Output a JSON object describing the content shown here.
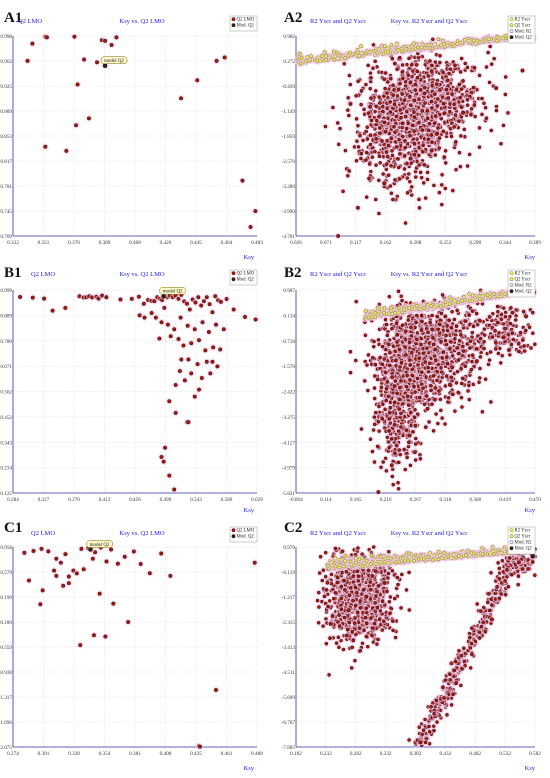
{
  "colors": {
    "grid": "#d8d8d8",
    "axis": "#3333aa",
    "title": "#1a1adb",
    "point_fill": "#aa1a0c",
    "point_stroke": "#2a0505",
    "model_fill": "#3a2205",
    "ycrand_fill": "#f0f060",
    "ycrand_stroke": "#6e6e10",
    "halo": "#f3c7e6",
    "label_bg": "#fff8c8",
    "legend_bg": "#ffffff"
  },
  "chart_data": [
    {
      "id": "A1",
      "panel_label": "A1",
      "type": "scatter",
      "title": "Ksy vs. Q2 LMO",
      "ylabel": "Q2 LMO",
      "xlabel": "Ksy",
      "xlim": [
        0.332,
        0.483
      ],
      "ylim": [
        0.709,
        0.998
      ],
      "xticks": [
        "0.332",
        "0.351",
        "0.370",
        "0.389",
        "0.408",
        "0.426",
        "0.445",
        "0.464",
        "0.483"
      ],
      "yticks": [
        "0.998",
        "0.962",
        "0.925",
        "0.889",
        "0.853",
        "0.817",
        "0.781",
        "0.745",
        "0.709"
      ],
      "legend": [
        "Q2 LMO",
        "Mod. Q2"
      ],
      "model_label": "model Q2",
      "model_point": {
        "x": 0.389,
        "y": 0.955
      },
      "n_clouds": 0,
      "series": [
        {
          "name": "Q2 LMO",
          "x": [
            0.344,
            0.352,
            0.353,
            0.37,
            0.372,
            0.376,
            0.387,
            0.389,
            0.393,
            0.396,
            0.384,
            0.379,
            0.436,
            0.446,
            0.458,
            0.463,
            0.474,
            0.479,
            0.482,
            0.341,
            0.352,
            0.371,
            0.365
          ],
          "y": [
            0.987,
            0.997,
            0.996,
            0.997,
            0.928,
            0.964,
            0.992,
            0.991,
            0.985,
            0.996,
            0.96,
            0.879,
            0.908,
            0.934,
            0.962,
            0.967,
            0.789,
            0.722,
            0.745,
            0.962,
            0.838,
            0.869,
            0.832
          ]
        }
      ]
    },
    {
      "id": "A2",
      "panel_label": "A2",
      "type": "scatter",
      "title": "Ksy vs. R2 Yscr and Q2 Yscr",
      "ylabel": "R2 Yscr and Q2 Yscr",
      "xlabel": "Ksy",
      "xlim": [
        0.026,
        0.389
      ],
      "ylim": [
        -4.701,
        0.982
      ],
      "xticks": [
        "0.026",
        "0.071",
        "0.117",
        "0.162",
        "0.208",
        "0.253",
        "0.298",
        "0.344",
        "0.389"
      ],
      "yticks": [
        "0.982",
        "0.272",
        "-0.439",
        "-1.149",
        "-1.859",
        "-2.570",
        "-3.280",
        "-3.990",
        "-4.701"
      ],
      "legend": [
        "R2 Yscr",
        "Q2 Yscr",
        "Mod. R2",
        "Mod. Q2"
      ],
      "model_label": "model Q2",
      "model_point": {
        "x": 0.386,
        "y": 0.88
      },
      "model_r2": {
        "x": 0.386,
        "y": 0.97
      },
      "n_clouds": 1400,
      "ycrand_band": {
        "x0": 0.026,
        "x1": 0.386,
        "y0": 0.18,
        "y1": 0.96,
        "spread": 0.12,
        "n": 420
      },
      "q2_cloud": [
        {
          "cx": 0.2,
          "cy": -1.15,
          "sx": 0.038,
          "sy": 0.75,
          "n": 900
        },
        {
          "cx": 0.25,
          "cy": -0.75,
          "sx": 0.035,
          "sy": 0.55,
          "n": 300
        },
        {
          "cx": 0.175,
          "cy": -2.3,
          "sx": 0.04,
          "sy": 0.85,
          "n": 200
        }
      ],
      "series": [
        {
          "name": "R2 Yscr",
          "x": [
            0.03,
            0.06,
            0.1,
            0.15,
            0.2,
            0.25,
            0.3,
            0.35,
            0.386
          ],
          "y": [
            0.21,
            0.28,
            0.35,
            0.45,
            0.55,
            0.66,
            0.75,
            0.86,
            0.96
          ]
        },
        {
          "name": "Q2 Yscr",
          "x": [
            0.09,
            0.12,
            0.16,
            0.2,
            0.24,
            0.28,
            0.33,
            0.37
          ],
          "y": [
            -4.7,
            -3.9,
            -3.2,
            -2.5,
            -1.8,
            -1.2,
            -0.5,
            0.0
          ]
        }
      ]
    },
    {
      "id": "B1",
      "panel_label": "B1",
      "type": "scatter",
      "title": "Ksy vs. Q2 LMO",
      "ylabel": "Q2 LMO",
      "xlabel": "Ksy",
      "xlim": [
        0.284,
        0.629
      ],
      "ylim": [
        0.125,
        0.999
      ],
      "xticks": [
        "0.284",
        "0.327",
        "0.370",
        "0.413",
        "0.456",
        "0.499",
        "0.543",
        "0.586",
        "0.629"
      ],
      "yticks": [
        "0.999",
        "0.889",
        "0.780",
        "0.671",
        "0.562",
        "0.452",
        "0.343",
        "0.234",
        "0.125"
      ],
      "legend": [
        "Q2 LMO",
        "Mod. Q2"
      ],
      "model_label": "model Q2",
      "model_point": {
        "x": 0.497,
        "y": 0.972
      },
      "n_clouds": 0,
      "series": [
        {
          "name": "Q2 LMO",
          "x": [
            0.294,
            0.312,
            0.328,
            0.34,
            0.358,
            0.378,
            0.384,
            0.388,
            0.392,
            0.396,
            0.402,
            0.405,
            0.41,
            0.416,
            0.436,
            0.452,
            0.462,
            0.469,
            0.475,
            0.48,
            0.484,
            0.488,
            0.492,
            0.495,
            0.498,
            0.502,
            0.506,
            0.51,
            0.514,
            0.518,
            0.522,
            0.526,
            0.53,
            0.534,
            0.538,
            0.542,
            0.546,
            0.55,
            0.554,
            0.558,
            0.562,
            0.566,
            0.57,
            0.574,
            0.578,
            0.586,
            0.596,
            0.612,
            0.627,
            0.486,
            0.494,
            0.503,
            0.512,
            0.521,
            0.531,
            0.541,
            0.552,
            0.561,
            0.571,
            0.582,
            0.491,
            0.507,
            0.518,
            0.525,
            0.536,
            0.547,
            0.556,
            0.567,
            0.577,
            0.532,
            0.545,
            0.558,
            0.563,
            0.573,
            0.52,
            0.527,
            0.514,
            0.505,
            0.514,
            0.494,
            0.53,
            0.547,
            0.541,
            0.532,
            0.499,
            0.497,
            0.505,
            0.512,
            0.522,
            0.536,
            0.551,
            0.566,
            0.48,
            0.47,
            0.463
          ],
          "y": [
            0.969,
            0.966,
            0.962,
            0.91,
            0.922,
            0.972,
            0.967,
            0.968,
            0.972,
            0.967,
            0.97,
            0.962,
            0.975,
            0.968,
            0.958,
            0.961,
            0.97,
            0.94,
            0.956,
            0.952,
            0.951,
            0.968,
            0.961,
            0.956,
            0.922,
            0.968,
            0.975,
            0.968,
            0.975,
            0.961,
            0.978,
            0.95,
            0.94,
            0.915,
            0.958,
            0.945,
            0.968,
            0.932,
            0.951,
            0.968,
            0.938,
            0.903,
            0.972,
            0.955,
            0.948,
            0.96,
            0.915,
            0.883,
            0.872,
            0.88,
            0.86,
            0.85,
            0.83,
            0.88,
            0.845,
            0.83,
            0.86,
            0.818,
            0.85,
            0.83,
            0.79,
            0.8,
            0.788,
            0.76,
            0.77,
            0.783,
            0.739,
            0.752,
            0.743,
            0.7,
            0.68,
            0.69,
            0.64,
            0.67,
            0.65,
            0.61,
            0.59,
            0.52,
            0.47,
            0.28,
            0.43,
            0.57,
            0.54,
            0.43,
            0.32,
            0.26,
            0.2,
            0.14,
            0.7,
            0.64,
            0.62,
            0.69,
            0.9,
            0.88,
            0.89
          ]
        }
      ]
    },
    {
      "id": "B2",
      "panel_label": "B2",
      "type": "scatter",
      "title": "Ksy vs. R2 Yscr and Q2 Yscr",
      "ylabel": "R2 Yscr and Q2 Yscr",
      "xlabel": "Ksy",
      "xlim": [
        -0.064,
        0.47
      ],
      "ylim": [
        -5.831,
        0.987
      ],
      "xticks": [
        "-0.064",
        "0.114",
        "0.165",
        "0.216",
        "0.267",
        "0.318",
        "0.368",
        "0.419",
        "0.470"
      ],
      "yticks": [
        "0.987",
        "0.134",
        "-0.718",
        "-1.570",
        "-2.422",
        "-3.275",
        "-4.127",
        "-4.979",
        "-5.831"
      ],
      "legend": [
        "R2 Yscr",
        "Q2 Yscr",
        "Mod. R2",
        "Mod. Q2"
      ],
      "model_label": "",
      "model_point": {
        "x": 0.467,
        "y": 0.9
      },
      "model_r2": {
        "x": 0.467,
        "y": 0.96
      },
      "n_clouds": 1600,
      "ycrand_band": {
        "x0": 0.09,
        "x1": 0.467,
        "y0": 0.02,
        "y1": 0.95,
        "spread": 0.12,
        "n": 480
      },
      "q2_cloud": [
        {
          "cx": 0.185,
          "cy": -1.45,
          "sx": 0.04,
          "sy": 0.95,
          "n": 800
        },
        {
          "cx": 0.27,
          "cy": -1.0,
          "sx": 0.05,
          "sy": 0.85,
          "n": 450
        },
        {
          "cx": 0.16,
          "cy": -3.5,
          "sx": 0.025,
          "sy": 1.0,
          "n": 250
        },
        {
          "cx": 0.4,
          "cy": -0.4,
          "sx": 0.04,
          "sy": 0.45,
          "n": 150
        }
      ],
      "series": [
        {
          "name": "R2 Yscr",
          "x": [
            0.09,
            0.15,
            0.21,
            0.27,
            0.33,
            0.39,
            0.45,
            0.467
          ],
          "y": [
            0.02,
            0.15,
            0.3,
            0.45,
            0.6,
            0.75,
            0.9,
            0.95
          ]
        },
        {
          "name": "Q2 Yscr",
          "x": [
            0.12,
            0.15,
            0.19,
            0.23,
            0.28,
            0.34,
            0.4,
            0.45
          ],
          "y": [
            -5.8,
            -4.9,
            -3.9,
            -3.0,
            -2.2,
            -1.4,
            -0.6,
            0.1
          ]
        }
      ]
    },
    {
      "id": "C1",
      "panel_label": "C1",
      "type": "scatter",
      "title": "Ksy vs. Q2 LMO",
      "ylabel": "Q2 LMO",
      "xlabel": "Ksy",
      "xlim": [
        0.274,
        0.488
      ],
      "ylim": [
        -2.075,
        0.958
      ],
      "xticks": [
        "0.274",
        "0.301",
        "0.328",
        "0.354",
        "0.381",
        "0.408",
        "0.435",
        "0.461",
        "0.488"
      ],
      "yticks": [
        "0.958",
        "0.579",
        "0.199",
        "-0.180",
        "-0.559",
        "-0.938",
        "-1.317",
        "-1.696",
        "-2.075"
      ],
      "legend": [
        "Q2 LMO",
        "Mod. Q2"
      ],
      "model_label": "model Q2",
      "model_point": {
        "x": 0.342,
        "y": 0.92
      },
      "n_clouds": 0,
      "series": [
        {
          "name": "Q2 LMO",
          "x": [
            0.284,
            0.292,
            0.299,
            0.305,
            0.312,
            0.316,
            0.32,
            0.323,
            0.327,
            0.33,
            0.334,
            0.34,
            0.346,
            0.351,
            0.356,
            0.36,
            0.366,
            0.372,
            0.38,
            0.386,
            0.394,
            0.404,
            0.412,
            0.452,
            0.486,
            0.288,
            0.3,
            0.312,
            0.323,
            0.336,
            0.35,
            0.362,
            0.375,
            0.318,
            0.333,
            0.345,
            0.355,
            0.437,
            0.438,
            0.31,
            0.344,
            0.298
          ],
          "y": [
            0.87,
            0.898,
            0.93,
            0.892,
            0.78,
            0.72,
            0.85,
            0.51,
            0.6,
            0.558,
            0.93,
            0.94,
            0.878,
            0.95,
            0.738,
            0.92,
            0.705,
            0.81,
            0.89,
            0.7,
            0.56,
            0.86,
            0.52,
            -1.21,
            0.72,
            0.45,
            0.3,
            0.52,
            0.41,
            0.62,
            0.25,
            0.1,
            -0.18,
            0.37,
            -0.53,
            -0.38,
            -0.4,
            -2.06,
            -2.07,
            0.6,
            0.78,
            0.09
          ]
        }
      ]
    },
    {
      "id": "C2",
      "panel_label": "C2",
      "type": "scatter",
      "title": "Ksy vs. R2 Yscr and Q2 Yscr",
      "ylabel": "R2 Yscr and Q2 Yscr",
      "xlabel": "Ksy",
      "xlim": [
        0.182,
        0.582
      ],
      "ylim": [
        -7.805,
        0.978
      ],
      "xticks": [
        "0.182",
        "0.232",
        "0.282",
        "0.332",
        "0.382",
        "0.432",
        "0.482",
        "0.532",
        "0.582"
      ],
      "yticks": [
        "0.978",
        "-0.119",
        "-1.217",
        "-2.315",
        "-3.413",
        "-4.511",
        "-5.609",
        "-6.707",
        "-7.805"
      ],
      "legend": [
        "R2 Yscr",
        "Q2 Yscr",
        "Mod. R2",
        "Mod. Q2"
      ],
      "model_label": "model Q2",
      "model_point": {
        "x": 0.578,
        "y": 0.58
      },
      "model_r2": {
        "x": 0.578,
        "y": 0.7
      },
      "n_clouds": 1500,
      "ycrand_band": {
        "x0": 0.24,
        "x1": 0.578,
        "y0": 0.02,
        "y1": 0.8,
        "spread": 0.2,
        "n": 520
      },
      "q2_cloud": [
        {
          "cx": 0.286,
          "cy": -1.25,
          "sx": 0.027,
          "sy": 0.95,
          "n": 1000
        },
        {
          "cx": 0.47,
          "cy": -3.65,
          "sx": 0.015,
          "sy": 0.6,
          "n": 0
        },
        {
          "cx": 0.555,
          "cy": 0.25,
          "sx": 0.015,
          "sy": 0.3,
          "n": 120
        }
      ],
      "diag_band": {
        "x0": 0.388,
        "x1": 0.555,
        "y0": -7.7,
        "y1": 0.8,
        "spread": 0.008,
        "n": 360
      },
      "series": [
        {
          "name": "R2 Yscr",
          "x": [
            0.24,
            0.3,
            0.36,
            0.42,
            0.48,
            0.54,
            0.578
          ],
          "y": [
            0.02,
            0.15,
            0.28,
            0.42,
            0.56,
            0.7,
            0.8
          ]
        },
        {
          "name": "Q2 Yscr",
          "x": [
            0.24,
            0.27,
            0.3,
            0.33,
            0.39,
            0.45,
            0.51,
            0.555
          ],
          "y": [
            -2.4,
            -1.8,
            -1.2,
            -0.6,
            -7.6,
            -5.0,
            -2.2,
            0.3
          ]
        }
      ]
    }
  ]
}
